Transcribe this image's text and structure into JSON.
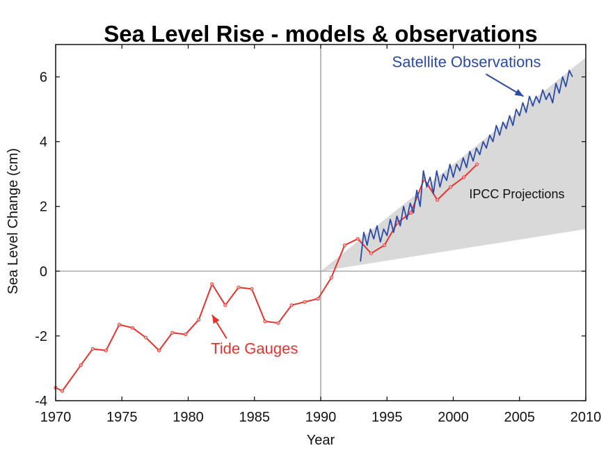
{
  "chart_data": {
    "type": "line",
    "title": "Sea Level Rise - models & observations",
    "xlabel": "Year",
    "ylabel": "Sea Level Change (cm)",
    "xlim": [
      1970,
      2010
    ],
    "ylim": [
      -4,
      7
    ],
    "x_ticks": [
      1970,
      1975,
      1980,
      1985,
      1990,
      1995,
      2000,
      2005,
      2010
    ],
    "y_ticks": [
      -4,
      -2,
      0,
      2,
      4,
      6
    ],
    "reference_lines": {
      "x": 1990,
      "y": 0
    },
    "series": [
      {
        "name": "Tide Gauges",
        "color": "#e8322b",
        "x": [
          1970,
          1970.5,
          1971.9,
          1972.8,
          1973.8,
          1974.8,
          1975.8,
          1976.8,
          1977.8,
          1978.8,
          1979.8,
          1980.8,
          1981.8,
          1982.8,
          1983.8,
          1984.8,
          1985.8,
          1986.8,
          1987.8,
          1988.8,
          1989.8,
          1990.8,
          1991.8,
          1992.8,
          1993.8,
          1994.8,
          1995.8,
          1996.8,
          1997.8,
          1998.8,
          1999.8,
          2000.8,
          2001.8
        ],
        "values": [
          -3.6,
          -3.7,
          -2.9,
          -2.4,
          -2.45,
          -1.65,
          -1.75,
          -2.05,
          -2.45,
          -1.9,
          -1.95,
          -1.5,
          -0.4,
          -1.05,
          -0.5,
          -0.55,
          -1.55,
          -1.6,
          -1.05,
          -0.95,
          -0.85,
          -0.2,
          0.8,
          1.0,
          0.55,
          0.8,
          1.5,
          1.8,
          2.85,
          2.2,
          2.6,
          2.9,
          3.3
        ]
      },
      {
        "name": "Satellite Observations",
        "color": "#2b4aa8",
        "x": [
          1993.0,
          1993.25,
          1993.5,
          1993.75,
          1994.0,
          1994.25,
          1994.5,
          1994.75,
          1995.0,
          1995.25,
          1995.5,
          1995.75,
          1996.0,
          1996.25,
          1996.5,
          1996.75,
          1997.0,
          1997.25,
          1997.5,
          1997.75,
          1998.0,
          1998.25,
          1998.5,
          1998.75,
          1999.0,
          1999.25,
          1999.5,
          1999.75,
          2000.0,
          2000.25,
          2000.5,
          2000.75,
          2001.0,
          2001.25,
          2001.5,
          2001.75,
          2002.0,
          2002.25,
          2002.5,
          2002.75,
          2003.0,
          2003.25,
          2003.5,
          2003.75,
          2004.0,
          2004.25,
          2004.5,
          2004.75,
          2005.0,
          2005.25,
          2005.5,
          2005.75,
          2006.0,
          2006.25,
          2006.5,
          2006.75,
          2007.0,
          2007.25,
          2007.5,
          2007.75,
          2008.0,
          2008.25,
          2008.5,
          2008.75,
          2009.0
        ],
        "values": [
          0.3,
          1.2,
          0.8,
          1.3,
          1.0,
          1.4,
          0.9,
          1.3,
          1.1,
          1.6,
          1.2,
          1.7,
          1.4,
          2.0,
          1.6,
          2.1,
          1.8,
          2.5,
          2.0,
          3.1,
          2.6,
          2.9,
          2.4,
          3.1,
          2.6,
          3.0,
          2.8,
          3.3,
          2.9,
          3.3,
          3.1,
          3.5,
          3.2,
          3.7,
          3.4,
          3.8,
          3.6,
          4.0,
          3.8,
          4.2,
          4.0,
          4.5,
          4.2,
          4.6,
          4.4,
          4.8,
          4.5,
          5.0,
          4.8,
          5.2,
          4.9,
          5.4,
          5.1,
          5.4,
          5.2,
          5.6,
          5.3,
          5.5,
          5.2,
          5.8,
          5.5,
          6.0,
          5.7,
          6.2,
          6.0
        ]
      }
    ],
    "projection_band": {
      "name": "IPCC Projections",
      "color": "#d9d9d9",
      "x": [
        1990,
        2010
      ],
      "lower": [
        0,
        1.3
      ],
      "upper": [
        0,
        6.6
      ]
    },
    "annotations": [
      {
        "text": "Satellite Observations",
        "color": "#2b4aa8",
        "x": 2001,
        "y": 6.3,
        "arrow_to": [
          2005.3,
          5.4
        ]
      },
      {
        "text": "IPCC Projections",
        "color": "#111111",
        "x": 2004.8,
        "y": 2.25
      },
      {
        "text": "Tide Gauges",
        "color": "#e8322b",
        "x": 1985,
        "y": -2.55,
        "arrow_to": [
          1981.8,
          -1.35
        ]
      }
    ]
  }
}
